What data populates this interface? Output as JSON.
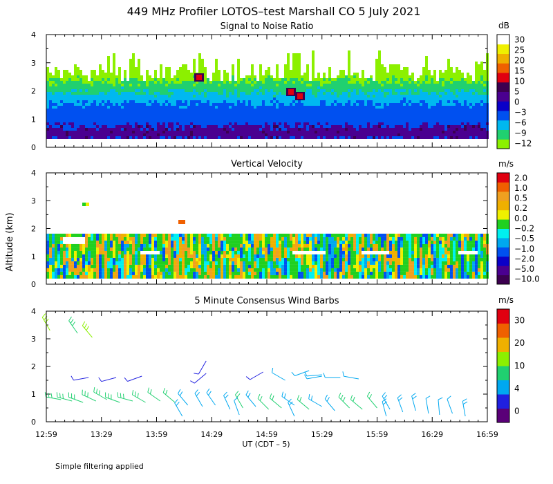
{
  "title": "449 MHz Profiler LOTOS–test Marshall CO  5 July 2021",
  "ylabel": "Altitude (km)",
  "xlabel": "UT  (CDT – 5)",
  "footer": "Simple filtering applied",
  "colors": {
    "snr_scale": [
      "#8cf000",
      "#20d070",
      "#00b8f0",
      "#0050f0",
      "#0a00c8",
      "#4a0090",
      "#3c0050",
      "#e00010",
      "#f06000",
      "#f0b000",
      "#f0f000",
      "#ffffff"
    ],
    "vel_scale": [
      "#3c0050",
      "#4a0090",
      "#0a00c8",
      "#0050f0",
      "#00a8f0",
      "#00f0f0",
      "#20d020",
      "#f0f000",
      "#f0b000",
      "#f0a020",
      "#f06000",
      "#e00010"
    ],
    "wind_scale": [
      "#5a0078",
      "#2020e0",
      "#00a8f0",
      "#20d070",
      "#8cf000",
      "#f0b000",
      "#f06000",
      "#e00010"
    ]
  },
  "chart_data": [
    {
      "id": "snr",
      "type": "heatmap",
      "title": "Signal to Noise Ratio",
      "unit": "dB",
      "colorbar_ticks": [
        "30",
        "25",
        "20",
        "15",
        "10",
        "5",
        "0",
        "−3",
        "−6",
        "−9",
        "−12"
      ],
      "xlim": [
        0,
        240
      ],
      "ylim": [
        0,
        4
      ],
      "ytick_labels": [
        "0",
        "1",
        "2",
        "3",
        "4"
      ],
      "xtick_labels": [
        "12:59",
        "13:29",
        "13:59",
        "14:29",
        "14:59",
        "15:29",
        "15:59",
        "16:29",
        "16:59"
      ],
      "layers_km": [
        {
          "from": 0.15,
          "to": 0.7,
          "value_db": 0
        },
        {
          "from": 0.7,
          "to": 1.5,
          "value_db": -3
        },
        {
          "from": 1.5,
          "to": 1.9,
          "value_db": -6
        },
        {
          "from": 1.9,
          "to": 2.3,
          "value_db": -9
        },
        {
          "from": 2.3,
          "to": 3.1,
          "value_db": -12
        }
      ],
      "peak_db": 15
    },
    {
      "id": "vv",
      "type": "heatmap",
      "title": "Vertical Velocity",
      "unit": "m/s",
      "colorbar_ticks": [
        "2.0",
        "1.0",
        "0.5",
        "0.2",
        "0.0",
        "−0.2",
        "−0.5",
        "−1.0",
        "−2.0",
        "−5.0",
        "−10.0"
      ],
      "xlim": [
        0,
        240
      ],
      "ylim": [
        0,
        4
      ],
      "ytick_labels": [
        "0",
        "1",
        "2",
        "3",
        "4"
      ],
      "xtick_labels": [
        "12:59",
        "13:29",
        "13:59",
        "14:29",
        "14:59",
        "15:29",
        "15:59",
        "16:29",
        "16:59"
      ],
      "range_km": [
        0.2,
        1.8
      ],
      "typical_ms": [
        -0.5,
        0.2
      ]
    },
    {
      "id": "wind",
      "type": "scatter",
      "title": "5 Minute Consensus Wind Barbs",
      "unit": "m/s",
      "colorbar_ticks": [
        "30",
        "20",
        "10",
        "4",
        "0"
      ],
      "xlim": [
        0,
        240
      ],
      "ylim": [
        0,
        4
      ],
      "ytick_labels": [
        "0",
        "1",
        "2",
        "3",
        "4"
      ],
      "xtick_labels": [
        "12:59",
        "13:29",
        "13:59",
        "14:29",
        "14:59",
        "15:29",
        "15:59",
        "16:29",
        "16:59"
      ],
      "barbs": [
        {
          "t": 2,
          "alt": 3.3,
          "speed": 10,
          "dir": 330
        },
        {
          "t": 17,
          "alt": 3.2,
          "speed": 9,
          "dir": 325
        },
        {
          "t": 25,
          "alt": 3.05,
          "speed": 10,
          "dir": 320
        },
        {
          "t": 23,
          "alt": 1.6,
          "speed": 3,
          "dir": 260
        },
        {
          "t": 38,
          "alt": 1.6,
          "speed": 3,
          "dir": 255
        },
        {
          "t": 52,
          "alt": 1.65,
          "speed": 3,
          "dir": 250
        },
        {
          "t": 87,
          "alt": 2.2,
          "speed": 3,
          "dir": 210
        },
        {
          "t": 87,
          "alt": 1.75,
          "speed": 3,
          "dir": 230
        },
        {
          "t": 118,
          "alt": 1.8,
          "speed": 3,
          "dir": 240
        },
        {
          "t": 130,
          "alt": 1.5,
          "speed": 4,
          "dir": 300
        },
        {
          "t": 143,
          "alt": 1.85,
          "speed": 4,
          "dir": 250
        },
        {
          "t": 150,
          "alt": 1.65,
          "speed": 4,
          "dir": 260
        },
        {
          "t": 150,
          "alt": 1.7,
          "speed": 4,
          "dir": 265
        },
        {
          "t": 160,
          "alt": 1.6,
          "speed": 4,
          "dir": 270
        },
        {
          "t": 170,
          "alt": 1.55,
          "speed": 4,
          "dir": 280
        },
        {
          "t": 8,
          "alt": 0.8,
          "speed": 8,
          "dir": 280
        },
        {
          "t": 14,
          "alt": 0.75,
          "speed": 8,
          "dir": 285
        },
        {
          "t": 20,
          "alt": 0.7,
          "speed": 9,
          "dir": 290
        },
        {
          "t": 27,
          "alt": 0.75,
          "speed": 9,
          "dir": 295
        },
        {
          "t": 33,
          "alt": 0.8,
          "speed": 8,
          "dir": 300
        },
        {
          "t": 40,
          "alt": 0.7,
          "speed": 9,
          "dir": 290
        },
        {
          "t": 47,
          "alt": 0.75,
          "speed": 9,
          "dir": 285
        },
        {
          "t": 54,
          "alt": 0.7,
          "speed": 8,
          "dir": 300
        },
        {
          "t": 62,
          "alt": 0.75,
          "speed": 7,
          "dir": 305
        },
        {
          "t": 70,
          "alt": 0.7,
          "speed": 7,
          "dir": 310
        },
        {
          "t": 77,
          "alt": 0.6,
          "speed": 6,
          "dir": 320
        },
        {
          "t": 85,
          "alt": 0.55,
          "speed": 6,
          "dir": 330
        },
        {
          "t": 92,
          "alt": 0.6,
          "speed": 6,
          "dir": 325
        },
        {
          "t": 100,
          "alt": 0.45,
          "speed": 6,
          "dir": 335
        },
        {
          "t": 107,
          "alt": 0.5,
          "speed": 7,
          "dir": 330
        },
        {
          "t": 114,
          "alt": 0.55,
          "speed": 6,
          "dir": 320
        },
        {
          "t": 121,
          "alt": 0.45,
          "speed": 7,
          "dir": 315
        },
        {
          "t": 128,
          "alt": 0.5,
          "speed": 7,
          "dir": 310
        },
        {
          "t": 135,
          "alt": 0.6,
          "speed": 6,
          "dir": 305
        },
        {
          "t": 143,
          "alt": 0.45,
          "speed": 7,
          "dir": 310
        },
        {
          "t": 150,
          "alt": 0.55,
          "speed": 6,
          "dir": 300
        },
        {
          "t": 157,
          "alt": 0.4,
          "speed": 6,
          "dir": 320
        },
        {
          "t": 165,
          "alt": 0.5,
          "speed": 8,
          "dir": 315
        },
        {
          "t": 172,
          "alt": 0.45,
          "speed": 7,
          "dir": 310
        },
        {
          "t": 180,
          "alt": 0.5,
          "speed": 7,
          "dir": 320
        },
        {
          "t": 187,
          "alt": 0.45,
          "speed": 6,
          "dir": 330
        },
        {
          "t": 194,
          "alt": 0.35,
          "speed": 5,
          "dir": 340
        },
        {
          "t": 201,
          "alt": 0.4,
          "speed": 5,
          "dir": 345
        },
        {
          "t": 208,
          "alt": 0.3,
          "speed": 4,
          "dir": 350
        },
        {
          "t": 214,
          "alt": 0.25,
          "speed": 4,
          "dir": 355
        },
        {
          "t": 221,
          "alt": 0.3,
          "speed": 4,
          "dir": 340
        },
        {
          "t": 228,
          "alt": 0.2,
          "speed": 5,
          "dir": 350
        },
        {
          "t": 74,
          "alt": 0.2,
          "speed": 5,
          "dir": 330
        },
        {
          "t": 105,
          "alt": 0.25,
          "speed": 4,
          "dir": 340
        },
        {
          "t": 135,
          "alt": 0.2,
          "speed": 5,
          "dir": 335
        },
        {
          "t": 185,
          "alt": 0.2,
          "speed": 5,
          "dir": 345
        }
      ]
    }
  ]
}
